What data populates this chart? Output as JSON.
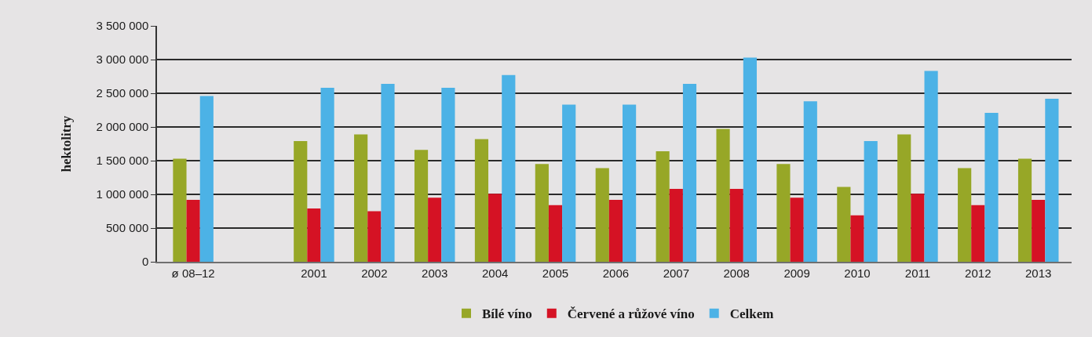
{
  "chart_data": {
    "type": "bar",
    "ylabel": "hektolitry",
    "categories": [
      "ø 08–12",
      null,
      "2001",
      "2002",
      "2003",
      "2004",
      "2005",
      "2006",
      "2007",
      "2008",
      "2009",
      "2010",
      "2011",
      "2012",
      "2013"
    ],
    "series": [
      {
        "name": "Bílé víno",
        "color": "#97a727",
        "values": [
          1530000,
          null,
          1790000,
          1890000,
          1660000,
          1820000,
          1450000,
          1390000,
          1640000,
          1970000,
          1450000,
          1110000,
          1890000,
          1390000,
          1530000
        ]
      },
      {
        "name": "Červené a růžové víno",
        "color": "#d51224",
        "values": [
          920000,
          null,
          790000,
          750000,
          950000,
          1010000,
          840000,
          920000,
          1080000,
          1080000,
          950000,
          690000,
          1010000,
          840000,
          920000
        ]
      },
      {
        "name": "Celkem",
        "color": "#4cb2e6",
        "values": [
          2460000,
          null,
          2580000,
          2640000,
          2580000,
          2770000,
          2330000,
          2330000,
          2640000,
          3030000,
          2380000,
          1790000,
          2830000,
          2210000,
          2420000
        ]
      }
    ],
    "ylim": [
      0,
      3500000
    ],
    "yticks": [
      {
        "value": 0,
        "label": "0"
      },
      {
        "value": 500000,
        "label": "500 000"
      },
      {
        "value": 1000000,
        "label": "1 000 000"
      },
      {
        "value": 1500000,
        "label": "1 500 000"
      },
      {
        "value": 2000000,
        "label": "2 000 000"
      },
      {
        "value": 2500000,
        "label": "2 500 000"
      },
      {
        "value": 3000000,
        "label": "3 000 000"
      },
      {
        "value": 3500000,
        "label": "3 500 000"
      }
    ],
    "grid": "y",
    "legend": "bottom"
  }
}
